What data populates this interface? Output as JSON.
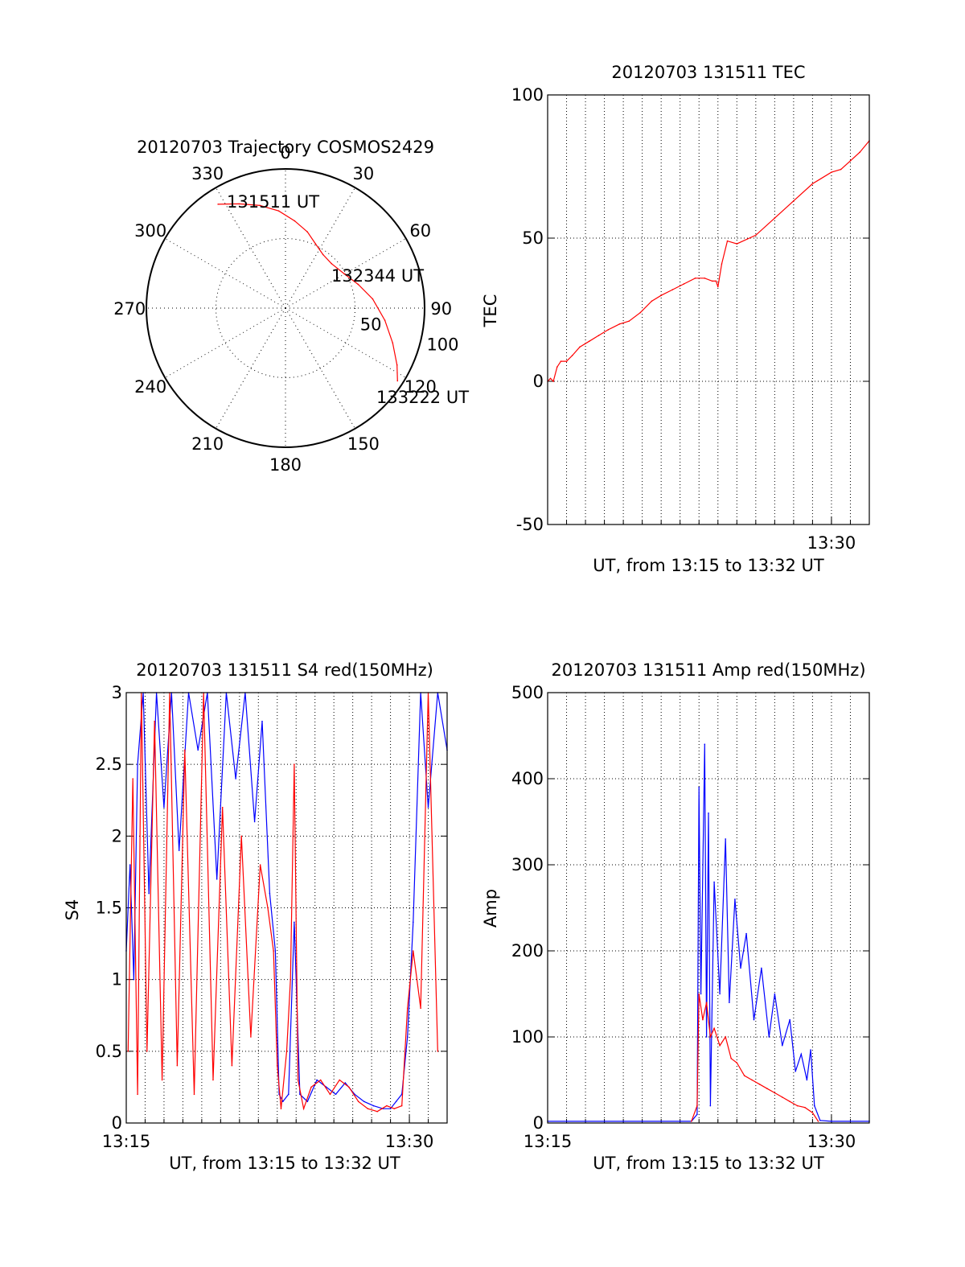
{
  "colors": {
    "red": "#ff0000",
    "blue": "#0000ff",
    "axis": "#000000",
    "grid": "#000000",
    "background": "#ffffff"
  },
  "chart_data": [
    {
      "id": "trajectory",
      "type": "polar",
      "title": "20120703 Trajectory COSMOS2429",
      "angle_labels": [
        "0",
        "30",
        "60",
        "90",
        "120",
        "150",
        "180",
        "210",
        "240",
        "270",
        "300",
        "330"
      ],
      "radial_labels": [
        "50",
        "100"
      ],
      "rlim": [
        0,
        100
      ],
      "grid": true,
      "series": [
        {
          "color": "#ff0000",
          "points": [
            [
              -33,
              89
            ],
            [
              -24,
              82
            ],
            [
              -14,
              76
            ],
            [
              -4,
              70
            ],
            [
              6,
              63
            ],
            [
              16,
              57
            ],
            [
              25,
              51
            ],
            [
              35,
              47
            ],
            [
              46,
              46
            ],
            [
              60,
              49
            ],
            [
              72,
              55
            ],
            [
              84,
              63
            ],
            [
              97,
              72
            ],
            [
              108,
              81
            ],
            [
              117,
              90
            ],
            [
              123,
              96
            ]
          ]
        }
      ],
      "annotations": [
        "131511 UT",
        "132344 UT",
        "133222 UT"
      ]
    },
    {
      "id": "tec",
      "type": "line",
      "title": "20120703 131511 TEC",
      "xlabel": "UT, from 13:15 to 13:32 UT",
      "ylabel": "TEC",
      "xlim": [
        0,
        17
      ],
      "ylim": [
        -50,
        100
      ],
      "yticks": [
        "-50",
        "0",
        "50",
        "100"
      ],
      "xticks": [
        "13:30"
      ],
      "grid": true,
      "series": [
        {
          "color": "#ff0000",
          "x": [
            0,
            0.15,
            0.3,
            0.5,
            0.7,
            1.0,
            1.3,
            1.7,
            2.2,
            2.7,
            3.2,
            3.8,
            4.3,
            4.9,
            5.5,
            6.0,
            6.6,
            7.2,
            7.8,
            8.3,
            8.7,
            8.9,
            9.0,
            9.2,
            9.5,
            10.0,
            11.0,
            12.0,
            13.0,
            14.0,
            15.0,
            15.5,
            16.0,
            16.5,
            17.0
          ],
          "y": [
            0,
            1,
            0,
            5,
            7,
            7,
            9,
            12,
            14,
            16,
            18,
            20,
            21,
            24,
            28,
            30,
            32,
            34,
            36,
            36,
            35,
            35,
            33,
            41,
            49,
            48,
            51,
            57,
            63,
            69,
            73,
            74,
            77,
            80,
            84
          ]
        }
      ]
    },
    {
      "id": "s4",
      "type": "line",
      "title": "20120703 131511 S4 red(150MHz)",
      "xlabel": "UT, from 13:15 to 13:32 UT",
      "ylabel": "S4",
      "xlim": [
        0,
        17
      ],
      "ylim": [
        0,
        3
      ],
      "yticks": [
        "0",
        "0.5",
        "1",
        "1.5",
        "2",
        "2.5",
        "3"
      ],
      "xticks": [
        "13:15",
        "13:30"
      ],
      "grid": true,
      "series": [
        {
          "color": "#0000ff",
          "x": [
            0,
            0.2,
            0.4,
            0.6,
            0.9,
            1.2,
            1.6,
            2.0,
            2.4,
            2.8,
            3.3,
            3.8,
            4.3,
            4.8,
            5.3,
            5.8,
            6.3,
            6.8,
            7.2,
            7.6,
            7.9,
            8.1,
            8.3,
            8.6,
            8.9,
            9.2,
            9.6,
            10.1,
            10.6,
            11.1,
            11.6,
            12.1,
            12.6,
            13.1,
            13.6,
            14.0,
            14.3,
            14.6,
            14.9,
            15.2,
            15.6,
            16.0,
            16.5,
            17.0
          ],
          "y": [
            1.2,
            1.8,
            1.0,
            2.5,
            3.0,
            1.6,
            3.0,
            2.2,
            3.0,
            1.9,
            3.0,
            2.6,
            3.0,
            1.7,
            3.0,
            2.4,
            3.0,
            2.1,
            2.8,
            1.6,
            1.2,
            0.2,
            0.15,
            0.2,
            1.4,
            0.2,
            0.15,
            0.3,
            0.25,
            0.2,
            0.28,
            0.2,
            0.15,
            0.12,
            0.1,
            0.1,
            0.15,
            0.2,
            0.6,
            1.4,
            3.0,
            2.2,
            3.0,
            2.6
          ]
        },
        {
          "color": "#ff0000",
          "x": [
            0.1,
            0.35,
            0.6,
            0.8,
            1.1,
            1.5,
            1.9,
            2.3,
            2.7,
            3.1,
            3.6,
            4.1,
            4.6,
            5.1,
            5.6,
            6.1,
            6.6,
            7.1,
            7.5,
            7.8,
            8.0,
            8.2,
            8.5,
            8.7,
            8.9,
            9.1,
            9.4,
            9.8,
            10.3,
            10.8,
            11.3,
            11.8,
            12.3,
            12.8,
            13.3,
            13.8,
            14.2,
            14.6,
            14.9,
            15.2,
            15.6,
            16.0,
            16.5
          ],
          "y": [
            0.5,
            2.4,
            0.2,
            3.0,
            0.5,
            2.8,
            0.3,
            3.0,
            0.4,
            2.6,
            0.2,
            3.0,
            0.3,
            2.2,
            0.4,
            2.0,
            0.6,
            1.8,
            1.5,
            1.2,
            0.4,
            0.1,
            0.5,
            1.0,
            2.5,
            0.3,
            0.1,
            0.25,
            0.3,
            0.2,
            0.3,
            0.25,
            0.15,
            0.1,
            0.08,
            0.12,
            0.1,
            0.12,
            0.8,
            1.2,
            0.8,
            3.0,
            0.5
          ]
        }
      ]
    },
    {
      "id": "amp",
      "type": "line",
      "title": "20120703 131511 Amp red(150MHz)",
      "xlabel": "UT, from 13:15 to 13:32 UT",
      "ylabel": "Amp",
      "xlim": [
        0,
        17
      ],
      "ylim": [
        0,
        500
      ],
      "yticks": [
        "0",
        "100",
        "200",
        "300",
        "400",
        "500"
      ],
      "xticks": [
        "13:15",
        "13:30"
      ],
      "grid": true,
      "series": [
        {
          "color": "#0000ff",
          "x": [
            0,
            7.6,
            7.9,
            8.0,
            8.1,
            8.3,
            8.4,
            8.5,
            8.6,
            8.8,
            9.1,
            9.4,
            9.6,
            9.9,
            10.2,
            10.5,
            10.9,
            11.3,
            11.7,
            12.0,
            12.4,
            12.8,
            13.1,
            13.4,
            13.7,
            13.9,
            14.1,
            14.4,
            15.0,
            17.0
          ],
          "y": [
            2,
            2,
            10,
            390,
            150,
            440,
            100,
            360,
            20,
            280,
            150,
            330,
            140,
            260,
            180,
            220,
            120,
            180,
            100,
            150,
            90,
            120,
            60,
            80,
            50,
            85,
            20,
            3,
            2,
            2
          ]
        },
        {
          "color": "#ff0000",
          "x": [
            7.6,
            7.9,
            8.0,
            8.2,
            8.4,
            8.6,
            8.8,
            9.1,
            9.4,
            9.7,
            10.0,
            10.4,
            10.8,
            11.2,
            11.6,
            12.0,
            12.4,
            12.8,
            13.2,
            13.6,
            14.0,
            14.3
          ],
          "y": [
            2,
            20,
            150,
            120,
            140,
            100,
            110,
            90,
            100,
            75,
            70,
            55,
            50,
            45,
            40,
            35,
            30,
            25,
            20,
            18,
            12,
            2
          ]
        }
      ]
    }
  ]
}
